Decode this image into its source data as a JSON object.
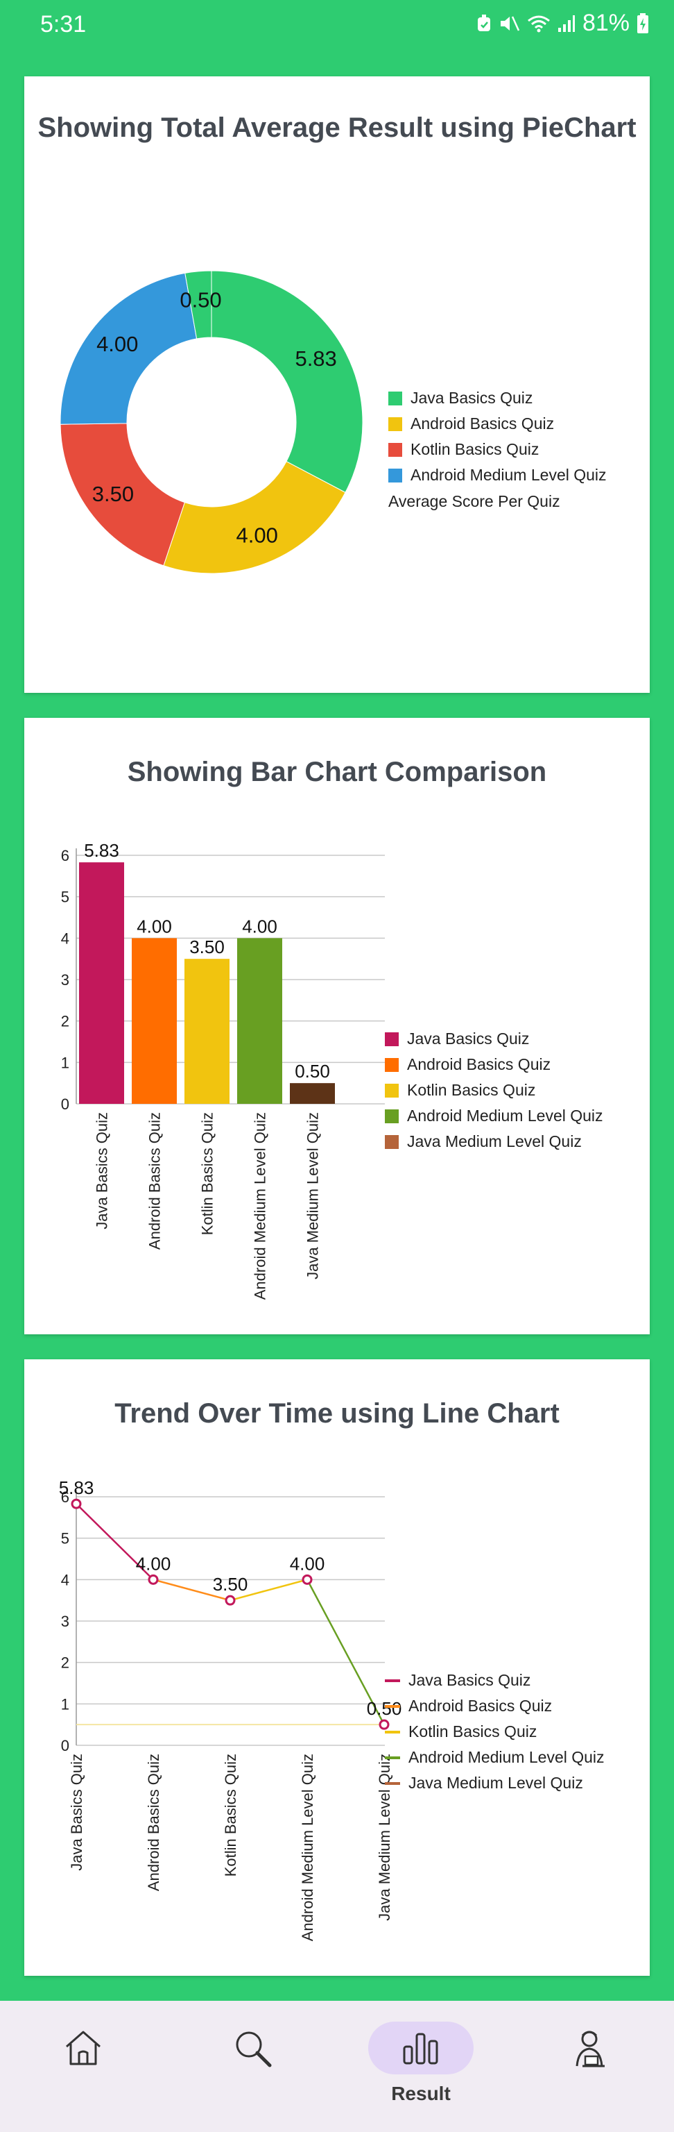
{
  "status_bar": {
    "time": "5:31",
    "battery": "81%"
  },
  "pie_card": {
    "title": "Showing Total Average Result using PieChart",
    "legend_description": "Average Score Per Quiz"
  },
  "bar_card": {
    "title": "Showing Bar Chart Comparison"
  },
  "line_card": {
    "title": "Trend Over Time using Line Chart"
  },
  "chart_data": [
    {
      "type": "pie",
      "title": "Showing Total Average Result using PieChart",
      "legend_description": "Average Score Per Quiz",
      "hole": true,
      "labels": [
        "Java Basics Quiz",
        "Android Basics Quiz",
        "Kotlin Basics Quiz",
        "Android Medium Level Quiz",
        "Java Medium Level Quiz"
      ],
      "values": [
        5.83,
        4.0,
        3.5,
        4.0,
        0.5
      ],
      "value_labels": [
        "5.83",
        "4.00",
        "3.50",
        "4.00",
        "0.50"
      ],
      "colors": [
        "#2ecc71",
        "#f1c40f",
        "#e74c3c",
        "#3498db",
        "#2ecc71"
      ],
      "legend_entries": [
        {
          "label": "Java Basics Quiz",
          "color": "#2ecc71"
        },
        {
          "label": "Android Basics Quiz",
          "color": "#f1c40f"
        },
        {
          "label": "Kotlin Basics Quiz",
          "color": "#e74c3c"
        },
        {
          "label": "Android Medium Level Quiz",
          "color": "#3498db"
        }
      ]
    },
    {
      "type": "bar",
      "title": "Showing Bar Chart Comparison",
      "categories": [
        "Java Basics Quiz",
        "Android Basics Quiz",
        "Kotlin Basics Quiz",
        "Android Medium Level Quiz",
        "Java Medium Level Quiz"
      ],
      "values": [
        5.83,
        4.0,
        3.5,
        4.0,
        0.5
      ],
      "value_labels": [
        "5.83",
        "4.00",
        "3.50",
        "4.00",
        "0.50"
      ],
      "colors": [
        "#c2185b",
        "#ff6d00",
        "#f1c40f",
        "#689f22",
        "#5d3317"
      ],
      "ylim": [
        0,
        6
      ],
      "yticks": [
        "0",
        "1",
        "2",
        "3",
        "4",
        "5",
        "6"
      ],
      "grid": true,
      "legend_entries": [
        {
          "label": "Java Basics Quiz",
          "color": "#c2185b"
        },
        {
          "label": "Android Basics Quiz",
          "color": "#ff6d00"
        },
        {
          "label": "Kotlin Basics Quiz",
          "color": "#f1c40f"
        },
        {
          "label": "Android Medium Level Quiz",
          "color": "#689f22"
        },
        {
          "label": "Java Medium Level Quiz",
          "color": "#b5643a"
        }
      ]
    },
    {
      "type": "line",
      "title": "Trend Over Time using Line Chart",
      "categories": [
        "Java Basics Quiz",
        "Android Basics Quiz",
        "Kotlin Basics Quiz",
        "Android Medium Level Quiz",
        "Java Medium Level Quiz"
      ],
      "values": [
        5.83,
        4.0,
        3.5,
        4.0,
        0.5
      ],
      "value_labels": [
        "5.83",
        "4.00",
        "3.50",
        "4.00",
        "0.50"
      ],
      "segment_colors": [
        "#c2185b",
        "#ff8c1a",
        "#f1c40f",
        "#689f22"
      ],
      "marker_color": "#c2185b",
      "limit_line": {
        "value": 0.5,
        "color": "#f5e6a3"
      },
      "ylim": [
        0,
        6
      ],
      "yticks": [
        "0",
        "1",
        "2",
        "3",
        "4",
        "5",
        "6"
      ],
      "grid": true,
      "legend_entries": [
        {
          "label": "Java Basics Quiz",
          "color": "#c2185b"
        },
        {
          "label": "Android Basics Quiz",
          "color": "#ff8c1a"
        },
        {
          "label": "Kotlin Basics Quiz",
          "color": "#f1c40f"
        },
        {
          "label": "Android Medium Level Quiz",
          "color": "#689f22"
        },
        {
          "label": "Java Medium Level Quiz",
          "color": "#b5643a"
        }
      ]
    }
  ],
  "bottom_nav": {
    "items": [
      {
        "icon": "home-icon",
        "label": ""
      },
      {
        "icon": "search-icon",
        "label": ""
      },
      {
        "icon": "bar-chart-icon",
        "label": "Result"
      },
      {
        "icon": "profile-icon",
        "label": ""
      }
    ],
    "active_label": "Result"
  }
}
